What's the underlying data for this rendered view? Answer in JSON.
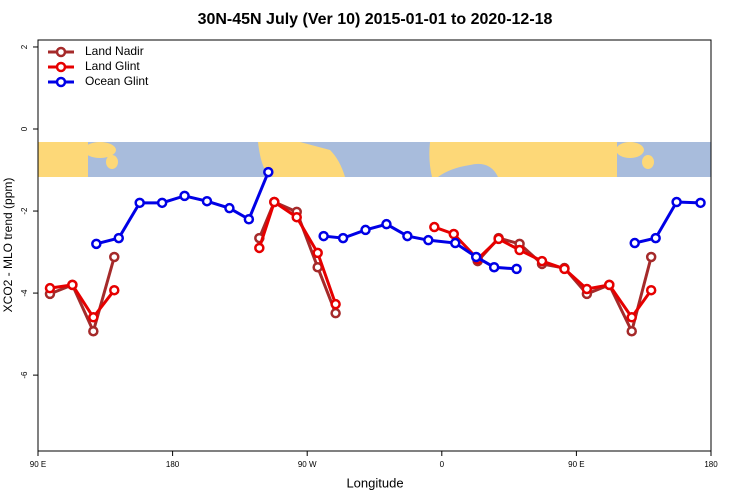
{
  "chart_data": {
    "type": "line",
    "title": "30N-45N July (Ver 10)   2015-01-01 to 2020-12-18",
    "x_label": "Longitude",
    "y_label": "XCO2 - MLO trend (ppm)",
    "xlim": [
      90,
      540
    ],
    "ylim": [
      -7.85,
      2.17
    ],
    "xticks": [
      {
        "value": 90,
        "label": "90 E"
      },
      180,
      {
        "value": 270,
        "label": "90 W"
      },
      {
        "value": 360,
        "label": "0"
      },
      {
        "value": 450,
        "label": "90 E"
      },
      {
        "value": 540,
        "label": "180"
      }
    ],
    "yticks": [
      -6,
      -4,
      -2,
      0,
      2
    ],
    "legend": "top-left",
    "series": [
      {
        "name": "Land Nadir",
        "color": "#a52a2a",
        "x": [
          98,
          113,
          127,
          141,
          null,
          238,
          248,
          263,
          277,
          289,
          null,
          384,
          398,
          412,
          427,
          442,
          457,
          472,
          487,
          500
        ],
        "values": [
          -4.02,
          -3.8,
          -4.93,
          -3.12,
          null,
          -2.66,
          -1.78,
          -2.02,
          -3.37,
          -4.49,
          null,
          -3.22,
          -2.66,
          -2.8,
          -3.29,
          -3.39,
          -4.02,
          -3.8,
          -4.93,
          -3.12
        ]
      },
      {
        "name": "Land Glint",
        "color": "#e60000",
        "x": [
          98,
          113,
          127,
          141,
          null,
          238,
          248,
          263,
          277,
          289,
          null,
          355,
          368,
          384,
          398,
          412,
          427,
          442,
          457,
          472,
          487,
          500
        ],
        "values": [
          -3.88,
          -3.8,
          -4.59,
          -3.93,
          null,
          -2.9,
          -1.78,
          -2.15,
          -3.02,
          -4.27,
          null,
          -2.39,
          -2.56,
          -3.17,
          -2.68,
          -2.95,
          -3.22,
          -3.41,
          -3.9,
          -3.8,
          -4.59,
          -3.93
        ]
      },
      {
        "name": "Ocean Glint",
        "color": "#0000e6",
        "x": [
          129,
          144,
          158,
          173,
          188,
          203,
          218,
          231,
          244,
          null,
          281,
          294,
          309,
          323,
          337,
          351,
          369,
          383,
          395,
          410,
          null,
          489,
          503,
          517,
          533
        ],
        "values": [
          -2.8,
          -2.66,
          -1.8,
          -1.8,
          -1.63,
          -1.76,
          -1.93,
          -2.2,
          -1.05,
          null,
          -2.61,
          -2.66,
          -2.46,
          -2.32,
          -2.61,
          -2.71,
          -2.78,
          -3.12,
          -3.37,
          -3.41,
          null,
          -2.78,
          -2.66,
          -1.78,
          -1.8
        ]
      }
    ]
  }
}
